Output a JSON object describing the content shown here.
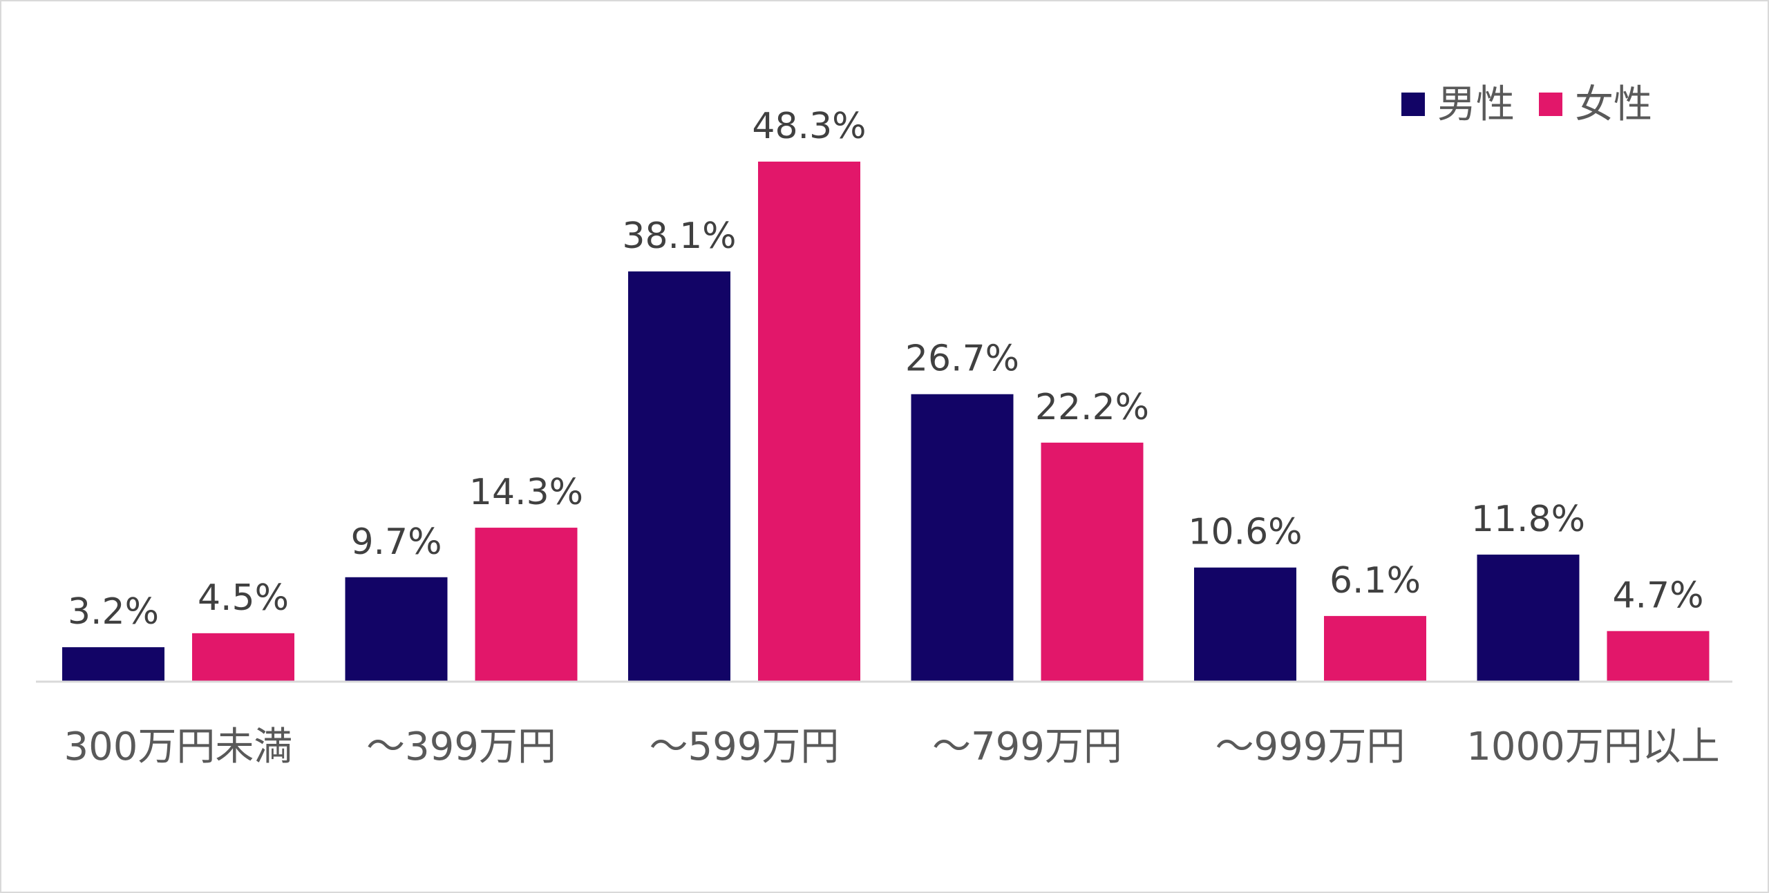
{
  "chart_data": {
    "type": "bar",
    "title": "",
    "xlabel": "",
    "ylabel": "",
    "ylim": [
      0,
      50
    ],
    "grid": false,
    "legend_position": "top-right",
    "categories": [
      "300万円未満",
      "～399万円",
      "～599万円",
      "～799万円",
      "～999万円",
      "1000万円以上"
    ],
    "series": [
      {
        "name": "男性",
        "color": "#120466",
        "values": [
          3.2,
          9.7,
          38.1,
          26.7,
          10.6,
          11.8
        ],
        "labels": [
          "3.2%",
          "9.7%",
          "38.1%",
          "26.7%",
          "10.6%",
          "11.8%"
        ]
      },
      {
        "name": "女性",
        "color": "#E2176A",
        "values": [
          4.5,
          14.3,
          48.3,
          22.2,
          6.1,
          4.7
        ],
        "labels": [
          "4.5%",
          "14.3%",
          "48.3%",
          "22.2%",
          "6.1%",
          "4.7%"
        ]
      }
    ]
  }
}
